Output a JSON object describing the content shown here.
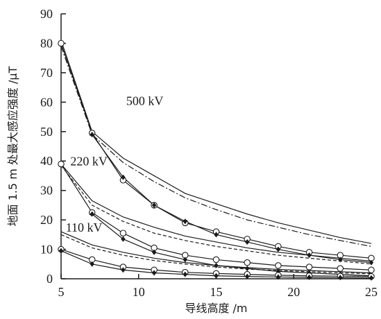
{
  "chart_data": {
    "type": "line",
    "xlabel": "导线高度 /m",
    "ylabel": "地面 1.5 m 处最大感应强度 /μT",
    "xlim": [
      5,
      25
    ],
    "ylim": [
      0,
      90
    ],
    "x_ticks": [
      5,
      10,
      15,
      20,
      25
    ],
    "y_ticks": [
      0,
      10,
      20,
      30,
      40,
      50,
      60,
      70,
      80,
      90
    ],
    "grid": false,
    "annotations": [
      {
        "text": "500 kV",
        "x": 9.2,
        "y": 59
      },
      {
        "text": "220 kV",
        "x": 5.6,
        "y": 38.5
      },
      {
        "text": "110 kV",
        "x": 5.3,
        "y": 16
      }
    ],
    "series": [
      {
        "group": "500 kV",
        "style": "solid",
        "x": [
          5,
          7,
          9,
          11,
          13,
          15,
          17,
          19,
          21,
          23,
          25
        ],
        "y": [
          81,
          50,
          41,
          35,
          29,
          25.5,
          22,
          19,
          16.5,
          14,
          12
        ]
      },
      {
        "group": "500 kV",
        "style": "dashdot",
        "x": [
          5,
          7,
          9,
          11,
          13,
          15,
          17,
          19,
          21,
          23,
          25
        ],
        "y": [
          79,
          49,
          39.5,
          33,
          27.5,
          23.5,
          20,
          17.5,
          15,
          13,
          11
        ]
      },
      {
        "group": "500 kV",
        "style": "solid",
        "marker": "circle",
        "x": [
          5,
          7,
          9,
          11,
          13,
          15,
          17,
          19,
          21,
          23,
          25
        ],
        "y": [
          80,
          49.5,
          33.5,
          25,
          19,
          16,
          13.5,
          11,
          9,
          8,
          7
        ]
      },
      {
        "group": "500 kV",
        "style": "solid",
        "marker": "diamond",
        "x": [
          7,
          9,
          11,
          13,
          15,
          17,
          19,
          21,
          23,
          25
        ],
        "y": [
          49,
          34.5,
          25,
          19.5,
          15,
          12.5,
          10,
          8,
          6.5,
          5.5
        ]
      },
      {
        "group": "220 kV",
        "style": "solid",
        "x": [
          5,
          7,
          9,
          11,
          13,
          15,
          17,
          19,
          21,
          23,
          25
        ],
        "y": [
          39,
          26.5,
          21,
          17.5,
          14.5,
          12.5,
          10.5,
          9,
          8,
          7,
          6
        ]
      },
      {
        "group": "220 kV",
        "style": "dashed",
        "x": [
          5,
          7,
          9,
          11,
          13,
          15,
          17,
          19,
          21,
          23,
          25
        ],
        "y": [
          38.5,
          25,
          19.5,
          15.5,
          13,
          11,
          9.5,
          8,
          7,
          6,
          5
        ]
      },
      {
        "group": "220 kV",
        "style": "solid",
        "marker": "circle",
        "x": [
          5,
          7,
          9,
          11,
          13,
          15,
          17,
          19,
          21,
          23,
          25
        ],
        "y": [
          39,
          22.5,
          15.5,
          10.5,
          8,
          6.5,
          5.5,
          4.5,
          4,
          3.5,
          3
        ]
      },
      {
        "group": "220 kV",
        "style": "solid",
        "marker": "diamond",
        "x": [
          7,
          9,
          11,
          13,
          15,
          17,
          19,
          21,
          23,
          25
        ],
        "y": [
          22,
          13.5,
          9,
          6.5,
          4.5,
          3.5,
          2.5,
          2,
          1.5,
          1
        ]
      },
      {
        "group": "110 kV",
        "style": "solid",
        "x": [
          5,
          7,
          9,
          11,
          13,
          15,
          17,
          19,
          21,
          23,
          25
        ],
        "y": [
          16,
          11.5,
          9,
          7,
          5.5,
          4.5,
          3.8,
          3.2,
          2.8,
          2.4,
          2
        ]
      },
      {
        "group": "110 kV",
        "style": "dashed",
        "x": [
          5,
          7,
          9,
          11,
          13,
          15,
          17,
          19,
          21,
          23,
          25
        ],
        "y": [
          15,
          10.5,
          8,
          6.2,
          5,
          4,
          3.3,
          2.8,
          2.4,
          2,
          1.7
        ]
      },
      {
        "group": "110 kV",
        "style": "solid",
        "marker": "circle",
        "x": [
          5,
          7,
          9,
          11,
          13,
          15,
          17,
          19,
          21,
          23,
          25
        ],
        "y": [
          10,
          6.5,
          4,
          3,
          2.2,
          1.8,
          1.5,
          1.2,
          1,
          0.9,
          0.8
        ]
      },
      {
        "group": "110 kV",
        "style": "solid",
        "marker": "diamond",
        "x": [
          5,
          7,
          9,
          11,
          13,
          15,
          17,
          19,
          21,
          23,
          25
        ],
        "y": [
          9.5,
          5,
          3,
          2,
          1.5,
          1,
          0.8,
          0.6,
          0.5,
          0.4,
          0.3
        ]
      }
    ]
  }
}
